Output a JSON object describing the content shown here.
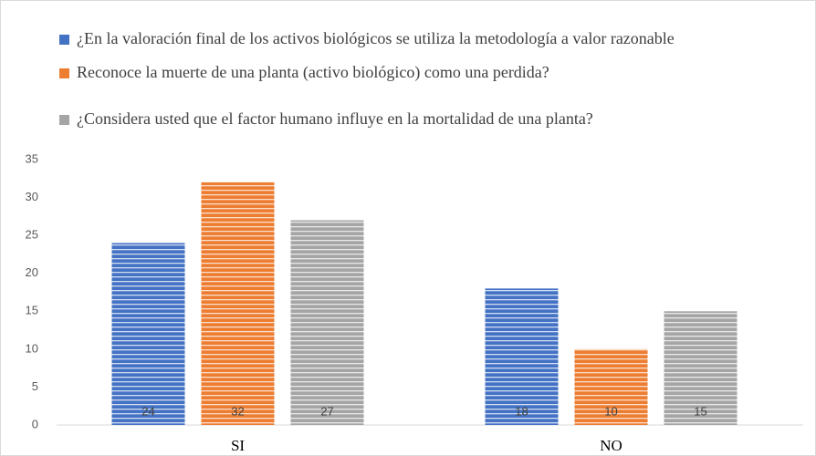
{
  "chart_data": {
    "type": "bar",
    "categories": [
      "SI",
      "NO"
    ],
    "series": [
      {
        "name": "¿En la valoración final de los activos biológicos se utiliza la metodología a valor razonable",
        "color": "#4472c4",
        "values": [
          24,
          18
        ]
      },
      {
        "name": "Reconoce la muerte de una planta (activo biológico) como una perdida?",
        "color": "#ed7d31",
        "values": [
          32,
          10
        ]
      },
      {
        "name": "¿Considera usted que el factor humano influye en la mortalidad de una planta?",
        "color": "#a5a5a5",
        "values": [
          27,
          15
        ]
      }
    ],
    "ylim": [
      0,
      35
    ],
    "yticks": [
      0,
      5,
      10,
      15,
      20,
      25,
      30,
      35
    ],
    "grid": false,
    "legend": "top"
  }
}
